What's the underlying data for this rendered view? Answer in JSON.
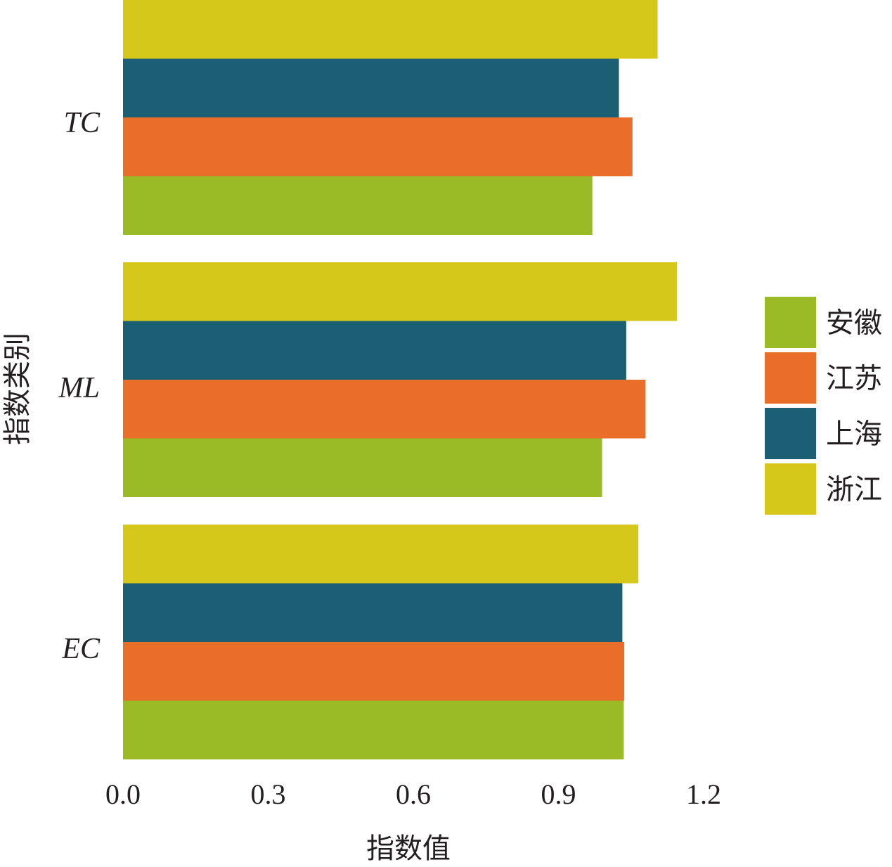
{
  "chart_data": {
    "type": "bar",
    "orientation": "horizontal",
    "categories": [
      "EC",
      "ML",
      "TC"
    ],
    "series": [
      {
        "name": "安徽",
        "color": "#9aba26",
        "values": [
          1.035,
          0.99,
          0.97
        ]
      },
      {
        "name": "江苏",
        "color": "#e86e2a",
        "values": [
          1.036,
          1.08,
          1.053
        ]
      },
      {
        "name": "上海",
        "color": "#1c5e74",
        "values": [
          1.032,
          1.04,
          1.025
        ]
      },
      {
        "name": "浙江",
        "color": "#d6c71b",
        "values": [
          1.065,
          1.145,
          1.105
        ]
      }
    ],
    "xlim": [
      0,
      1.2
    ],
    "xticks": [
      "0.0",
      "0.3",
      "0.6",
      "0.9",
      "1.2"
    ],
    "xlabel": "指数值",
    "ylabel": "指数类别",
    "legend_position": "right",
    "grid": false
  }
}
